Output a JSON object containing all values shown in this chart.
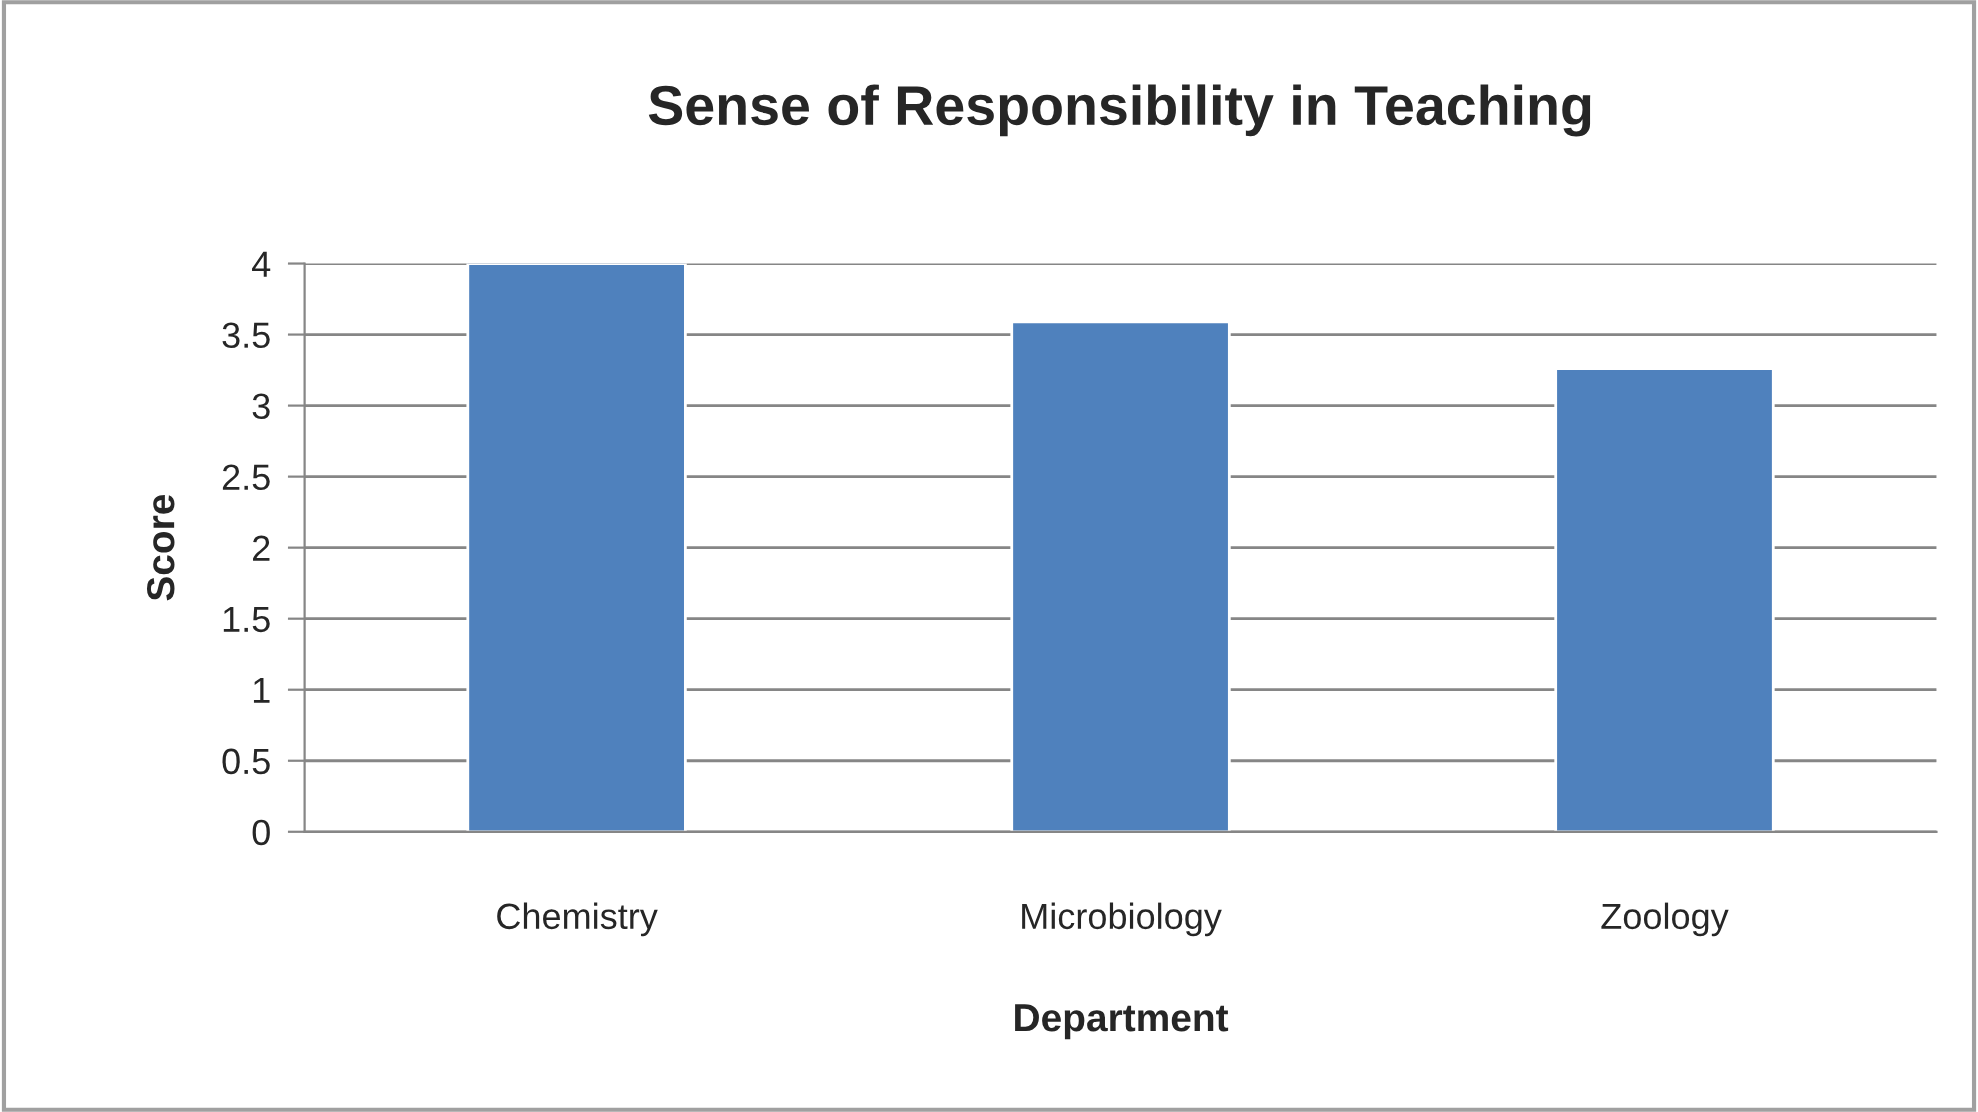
{
  "chart_data": {
    "type": "bar",
    "title": "Sense of Responsibility in Teaching",
    "xlabel": "Department",
    "ylabel": "Score",
    "categories": [
      "Chemistry",
      "Microbiology",
      "Zoology"
    ],
    "values": [
      4.0,
      3.59,
      3.26
    ],
    "color": "#4f81bd",
    "ylim": [
      0,
      4
    ],
    "yticks": [
      0,
      0.5,
      1,
      1.5,
      2,
      2.5,
      3,
      3.5,
      4
    ],
    "grid": "y",
    "legend": false
  }
}
